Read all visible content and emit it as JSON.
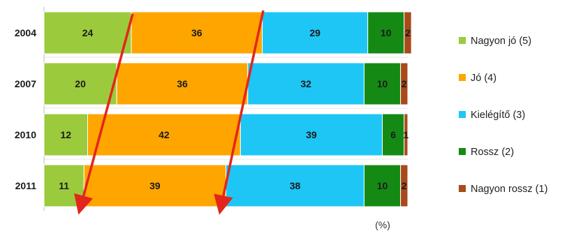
{
  "chart_data": {
    "type": "bar",
    "orientation": "horizontal",
    "stacked": true,
    "normalized_to": 100,
    "categories": [
      "2004",
      "2007",
      "2010",
      "2011"
    ],
    "series": [
      {
        "name": "Nagyon jó (5)",
        "color": "#9bcb3c",
        "values": [
          24,
          20,
          12,
          11
        ]
      },
      {
        "name": "Jó (4)",
        "color": "#ffa500",
        "values": [
          36,
          36,
          42,
          39
        ]
      },
      {
        "name": "Kielégítő (3)",
        "color": "#1ec6f5",
        "values": [
          29,
          32,
          39,
          38
        ]
      },
      {
        "name": "Rossz (2)",
        "color": "#148a14",
        "values": [
          10,
          10,
          6,
          10
        ]
      },
      {
        "name": "Nagyon rossz (1)",
        "color": "#a84a1a",
        "values": [
          2,
          2,
          1,
          2
        ]
      }
    ],
    "xlabel": "(%)",
    "xlim": [
      0,
      100
    ],
    "grid": false,
    "legend": "right",
    "annotations": [
      "two red trend arrows pointing downward across the bars"
    ]
  }
}
